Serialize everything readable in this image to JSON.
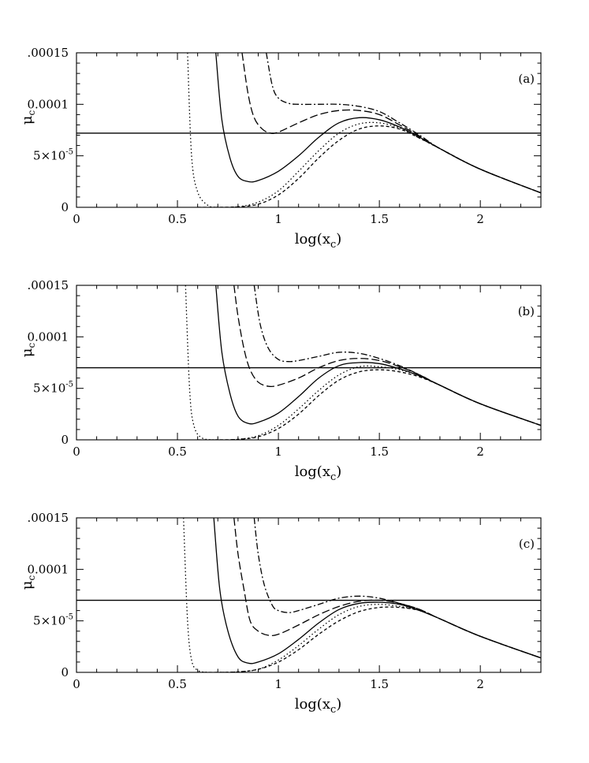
{
  "chart_data": [
    {
      "type": "line",
      "panel_label": "(a)",
      "xlabel": "log(x",
      "xlabel_sub": "c",
      "xlabel_close": ")",
      "ylabel": "μ",
      "ylabel_sub": "c",
      "xlim": [
        0,
        2.3
      ],
      "ylim": [
        0,
        0.00015
      ],
      "xticks": [
        0,
        0.5,
        1,
        1.5,
        2
      ],
      "xtick_labels": [
        "0",
        "0.5",
        "1",
        "1.5",
        "2"
      ],
      "yticks": [
        0,
        5e-05,
        0.0001,
        0.00015
      ],
      "ytick_labels": [
        "0",
        "5×10",
        "0.0001",
        ".00015"
      ],
      "ytick_exponent": "-5",
      "reference_line": 7.2e-05,
      "series": [
        {
          "name": "dotted",
          "dash": "1.5,3",
          "x": [
            0.55,
            0.57,
            0.6,
            0.65,
            0.7,
            0.8,
            0.9,
            1.0,
            1.1,
            1.2,
            1.3,
            1.4,
            1.5,
            1.6,
            1.7,
            1.8,
            2.0,
            2.3
          ],
          "y": [
            0.00015,
            5e-05,
            1.5e-05,
            2e-06,
            0,
            5e-07,
            5e-06,
            1.6e-05,
            3.5e-05,
            5.5e-05,
            7.2e-05,
            8.1e-05,
            8.2e-05,
            7.7e-05,
            6.7e-05,
            5.7e-05,
            3.7e-05,
            1.4e-05
          ]
        },
        {
          "name": "short-dash",
          "dash": "4,3",
          "x": [
            0.6,
            0.7,
            0.8,
            0.9,
            1.0,
            1.1,
            1.2,
            1.3,
            1.4,
            1.5,
            1.6,
            1.7,
            1.8,
            2.0,
            2.3
          ],
          "y": [
            0,
            0,
            5e-07,
            3e-06,
            1.2e-05,
            2.8e-05,
            4.8e-05,
            6.5e-05,
            7.6e-05,
            7.9e-05,
            7.6e-05,
            6.7e-05,
            5.7e-05,
            3.7e-05,
            1.4e-05
          ]
        },
        {
          "name": "solid",
          "dash": "",
          "x": [
            0.69,
            0.72,
            0.76,
            0.8,
            0.85,
            0.9,
            1.0,
            1.1,
            1.2,
            1.3,
            1.4,
            1.5,
            1.6,
            1.7,
            1.8,
            2.0,
            2.3
          ],
          "y": [
            0.00015,
            8.5e-05,
            4.8e-05,
            3e-05,
            2.5e-05,
            2.6e-05,
            3.5e-05,
            5e-05,
            6.8e-05,
            8.2e-05,
            8.7e-05,
            8.5e-05,
            7.8e-05,
            6.8e-05,
            5.7e-05,
            3.7e-05,
            1.4e-05
          ]
        },
        {
          "name": "long-dash",
          "dash": "10,4",
          "x": [
            0.82,
            0.85,
            0.88,
            0.92,
            0.96,
            1.0,
            1.1,
            1.2,
            1.3,
            1.4,
            1.5,
            1.6,
            1.7,
            1.8,
            2.0,
            2.3
          ],
          "y": [
            0.00015,
            0.00011,
            8.7e-05,
            7.6e-05,
            7.2e-05,
            7.3e-05,
            8.2e-05,
            9e-05,
            9.4e-05,
            9.4e-05,
            9e-05,
            8e-05,
            6.9e-05,
            5.7e-05,
            3.7e-05,
            1.4e-05
          ]
        },
        {
          "name": "dash-dot",
          "dash": "8,3,2,3",
          "x": [
            0.94,
            0.97,
            1.0,
            1.05,
            1.1,
            1.2,
            1.3,
            1.4,
            1.5,
            1.6,
            1.7,
            1.8,
            2.0,
            2.3
          ],
          "y": [
            0.00015,
            0.000118,
            0.000106,
            0.000101,
            0.0001,
            0.0001,
            0.0001,
            9.8e-05,
            9.3e-05,
            8.2e-05,
            7e-05,
            5.7e-05,
            3.7e-05,
            1.4e-05
          ]
        }
      ]
    },
    {
      "type": "line",
      "panel_label": "(b)",
      "xlabel": "log(x",
      "xlabel_sub": "c",
      "xlabel_close": ")",
      "ylabel": "μ",
      "ylabel_sub": "c",
      "xlim": [
        0,
        2.3
      ],
      "ylim": [
        0,
        0.00015
      ],
      "xticks": [
        0,
        0.5,
        1,
        1.5,
        2
      ],
      "xtick_labels": [
        "0",
        "0.5",
        "1",
        "1.5",
        "2"
      ],
      "yticks": [
        0,
        5e-05,
        0.0001,
        0.00015
      ],
      "ytick_labels": [
        "0",
        "5×10",
        "0.0001",
        ".00015"
      ],
      "ytick_exponent": "-5",
      "reference_line": 7e-05,
      "series": [
        {
          "name": "dotted",
          "dash": "1.5,3",
          "x": [
            0.54,
            0.56,
            0.58,
            0.62,
            0.7,
            0.8,
            0.9,
            1.0,
            1.1,
            1.2,
            1.3,
            1.4,
            1.5,
            1.6,
            1.7,
            1.8,
            2.0,
            2.3
          ],
          "y": [
            0.00015,
            5e-05,
            1.5e-05,
            2e-06,
            0,
            5e-07,
            4e-06,
            1.4e-05,
            3e-05,
            4.8e-05,
            6.3e-05,
            7.1e-05,
            7.1e-05,
            6.8e-05,
            6.2e-05,
            5.3e-05,
            3.5e-05,
            1.4e-05
          ]
        },
        {
          "name": "short-dash",
          "dash": "4,3",
          "x": [
            0.6,
            0.7,
            0.8,
            0.9,
            1.0,
            1.1,
            1.2,
            1.3,
            1.4,
            1.5,
            1.6,
            1.7,
            1.8,
            2.0,
            2.3
          ],
          "y": [
            0,
            0,
            5e-07,
            3e-06,
            1.1e-05,
            2.5e-05,
            4.3e-05,
            5.8e-05,
            6.6e-05,
            6.8e-05,
            6.6e-05,
            6.1e-05,
            5.3e-05,
            3.5e-05,
            1.4e-05
          ]
        },
        {
          "name": "solid",
          "dash": "",
          "x": [
            0.69,
            0.72,
            0.76,
            0.8,
            0.85,
            0.9,
            1.0,
            1.1,
            1.2,
            1.3,
            1.4,
            1.5,
            1.6,
            1.7,
            1.8,
            2.0,
            2.3
          ],
          "y": [
            0.00015,
            8.5e-05,
            4.5e-05,
            2.3e-05,
            1.6e-05,
            1.7e-05,
            2.6e-05,
            4.2e-05,
            6e-05,
            7.2e-05,
            7.5e-05,
            7.4e-05,
            6.9e-05,
            6.2e-05,
            5.3e-05,
            3.5e-05,
            1.4e-05
          ]
        },
        {
          "name": "long-dash",
          "dash": "10,4",
          "x": [
            0.78,
            0.8,
            0.83,
            0.86,
            0.9,
            0.95,
            1.0,
            1.1,
            1.2,
            1.3,
            1.4,
            1.5,
            1.6,
            1.7,
            1.8,
            2.0,
            2.3
          ],
          "y": [
            0.00015,
            0.00012,
            8.8e-05,
            6.8e-05,
            5.6e-05,
            5.2e-05,
            5.3e-05,
            6e-05,
            7e-05,
            7.7e-05,
            7.9e-05,
            7.7e-05,
            7.1e-05,
            6.3e-05,
            5.3e-05,
            3.5e-05,
            1.4e-05
          ]
        },
        {
          "name": "dash-dot",
          "dash": "8,3,2,3",
          "x": [
            0.88,
            0.91,
            0.95,
            1.0,
            1.05,
            1.1,
            1.2,
            1.3,
            1.4,
            1.5,
            1.6,
            1.7,
            1.8,
            2.0,
            2.3
          ],
          "y": [
            0.00015,
            0.000112,
            8.9e-05,
            7.8e-05,
            7.6e-05,
            7.7e-05,
            8.1e-05,
            8.5e-05,
            8.4e-05,
            7.9e-05,
            7.2e-05,
            6.3e-05,
            5.3e-05,
            3.5e-05,
            1.4e-05
          ]
        }
      ]
    },
    {
      "type": "line",
      "panel_label": "(c)",
      "xlabel": "log(x",
      "xlabel_sub": "c",
      "xlabel_close": ")",
      "ylabel": "μ",
      "ylabel_sub": "c",
      "xlim": [
        0,
        2.3
      ],
      "ylim": [
        0,
        0.00015
      ],
      "xticks": [
        0,
        0.5,
        1,
        1.5,
        2
      ],
      "xtick_labels": [
        "0",
        "0.5",
        "1",
        "1.5",
        "2"
      ],
      "yticks": [
        0,
        5e-05,
        0.0001,
        0.00015
      ],
      "ytick_labels": [
        "0",
        "5×10",
        "0.0001",
        ".00015"
      ],
      "ytick_exponent": "-5",
      "reference_line": 7e-05,
      "series": [
        {
          "name": "dotted",
          "dash": "1.5,3",
          "x": [
            0.53,
            0.55,
            0.57,
            0.6,
            0.65,
            0.7,
            0.8,
            0.9,
            1.0,
            1.1,
            1.2,
            1.3,
            1.4,
            1.5,
            1.6,
            1.7,
            1.8,
            2.0,
            2.3
          ],
          "y": [
            0.00015,
            5e-05,
            1.2e-05,
            2e-06,
            0,
            0,
            5e-07,
            3e-06,
            1.2e-05,
            2.6e-05,
            4.2e-05,
            5.6e-05,
            6.4e-05,
            6.6e-05,
            6.4e-05,
            6e-05,
            5.2e-05,
            3.5e-05,
            1.4e-05
          ]
        },
        {
          "name": "short-dash",
          "dash": "4,3",
          "x": [
            0.6,
            0.7,
            0.8,
            0.9,
            1.0,
            1.1,
            1.2,
            1.3,
            1.4,
            1.5,
            1.6,
            1.7,
            1.8,
            2.0,
            2.3
          ],
          "y": [
            0,
            0,
            5e-07,
            3e-06,
            1e-05,
            2.2e-05,
            3.7e-05,
            5e-05,
            5.9e-05,
            6.3e-05,
            6.3e-05,
            6e-05,
            5.2e-05,
            3.5e-05,
            1.4e-05
          ]
        },
        {
          "name": "solid",
          "dash": "",
          "x": [
            0.68,
            0.71,
            0.75,
            0.8,
            0.85,
            0.9,
            1.0,
            1.1,
            1.2,
            1.3,
            1.4,
            1.5,
            1.6,
            1.7,
            1.8,
            2.0,
            2.3
          ],
          "y": [
            0.00015,
            8e-05,
            4e-05,
            1.5e-05,
            9e-06,
            1e-05,
            1.8e-05,
            3.2e-05,
            4.8e-05,
            6.1e-05,
            6.7e-05,
            6.8e-05,
            6.6e-05,
            6e-05,
            5.2e-05,
            3.5e-05,
            1.4e-05
          ]
        },
        {
          "name": "long-dash",
          "dash": "10,4",
          "x": [
            0.78,
            0.8,
            0.83,
            0.86,
            0.9,
            0.95,
            1.0,
            1.1,
            1.2,
            1.3,
            1.4,
            1.5,
            1.6,
            1.7,
            1.8,
            2.0,
            2.3
          ],
          "y": [
            0.00015,
            0.000115,
            8e-05,
            5e-05,
            4e-05,
            3.6e-05,
            3.7e-05,
            4.6e-05,
            5.6e-05,
            6.4e-05,
            6.9e-05,
            7e-05,
            6.7e-05,
            6.1e-05,
            5.2e-05,
            3.5e-05,
            1.4e-05
          ]
        },
        {
          "name": "dash-dot",
          "dash": "8,3,2,3",
          "x": [
            0.88,
            0.9,
            0.93,
            0.97,
            1.0,
            1.05,
            1.1,
            1.2,
            1.3,
            1.4,
            1.5,
            1.6,
            1.7,
            1.8,
            2.0,
            2.3
          ],
          "y": [
            0.00015,
            0.000115,
            8.5e-05,
            6.5e-05,
            6e-05,
            5.8e-05,
            6e-05,
            6.6e-05,
            7.2e-05,
            7.4e-05,
            7.2e-05,
            6.7e-05,
            6.1e-05,
            5.2e-05,
            3.5e-05,
            1.4e-05
          ]
        }
      ]
    }
  ]
}
